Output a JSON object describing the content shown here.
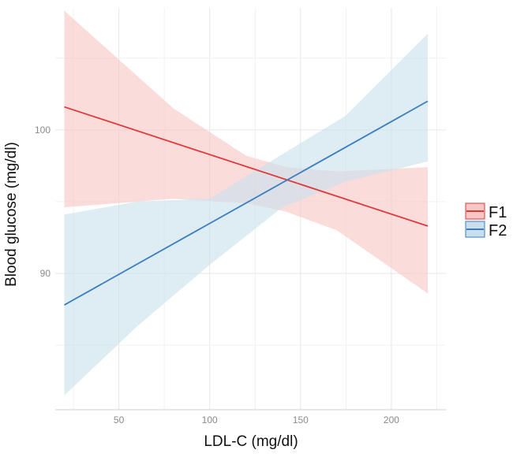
{
  "chart_data": {
    "type": "line",
    "title": "",
    "xlabel": "LDL-C (mg/dl)",
    "ylabel": "Blood glucose (mg/dl)",
    "xlim": [
      15,
      230
    ],
    "ylim": [
      80.5,
      108.5
    ],
    "xticks": [
      50,
      100,
      150,
      200
    ],
    "yticks": [
      90,
      100
    ],
    "grid": true,
    "legend_position": "right",
    "series": [
      {
        "name": "F1",
        "color": "#e0383b",
        "ribbon_color": "#f7c6c5",
        "x": [
          20,
          220
        ],
        "y": [
          101.6,
          93.3
        ],
        "ci_x": [
          20,
          80,
          120,
          142,
          170,
          220
        ],
        "ci_lower": [
          94.6,
          95.2,
          94.9,
          94.3,
          93.0,
          88.6
        ],
        "ci_upper": [
          108.3,
          101.5,
          98.2,
          97.4,
          97.1,
          97.4
        ]
      },
      {
        "name": "F2",
        "color": "#3b7dbf",
        "ribbon_color": "#c9e0ec",
        "x": [
          20,
          220
        ],
        "y": [
          87.8,
          102.0
        ],
        "ci_x": [
          20,
          60,
          100,
          140,
          175,
          220
        ],
        "ci_lower": [
          81.5,
          86.3,
          90.6,
          94.6,
          96.4,
          97.8
        ],
        "ci_upper": [
          94.1,
          95.0,
          95.2,
          98.3,
          101.0,
          106.7
        ]
      }
    ]
  }
}
